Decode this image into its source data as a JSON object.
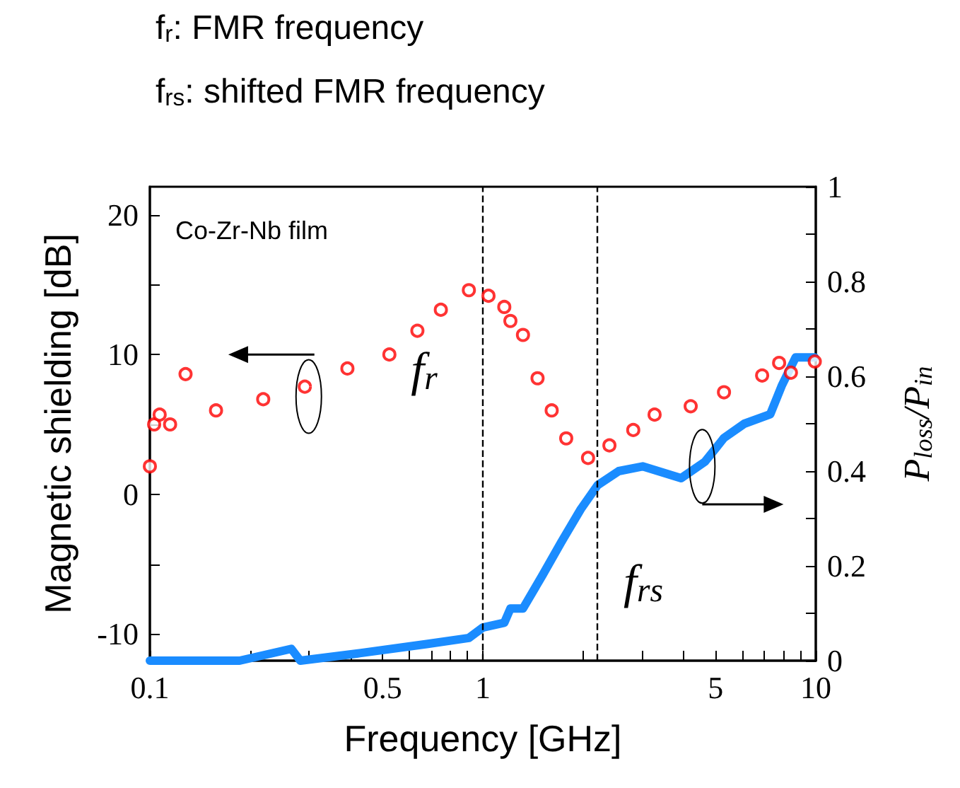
{
  "chart_data": {
    "type": "scatter",
    "xlabel": "Frequency [GHz]",
    "ylabel": "Magnetic shielding [dB]",
    "y2label": "P$_{loss}$/P$_{in}$",
    "log": "x",
    "xlim": [
      0.1,
      10
    ],
    "xticks": [
      0.1,
      {
        "value": 0.2,
        "label": null
      },
      {
        "value": 0.3,
        "label": null
      },
      {
        "value": 0.4,
        "label": null
      },
      0.5,
      {
        "value": 0.6,
        "label": null
      },
      {
        "value": 0.7,
        "label": null
      },
      {
        "value": 0.8,
        "label": null
      },
      {
        "value": 0.9,
        "label": null
      },
      1,
      {
        "value": 2,
        "label": null
      },
      {
        "value": 3,
        "label": null
      },
      {
        "value": 4,
        "label": null
      },
      5,
      {
        "value": 6,
        "label": null
      },
      {
        "value": 7,
        "label": null
      },
      {
        "value": 8,
        "label": null
      },
      {
        "value": 9,
        "label": null
      },
      10
    ],
    "ylim": [
      -11.9,
      22
    ],
    "yticks": [
      -10,
      {
        "value": -5,
        "label": null
      },
      0,
      {
        "value": 5,
        "label": null
      },
      10,
      {
        "value": 15,
        "label": null
      },
      20
    ],
    "y2lim": [
      0,
      1
    ],
    "y2ticks": [
      0,
      {
        "value": 0.1,
        "label": null
      },
      0.2,
      {
        "value": 0.3,
        "label": null
      },
      0.4,
      {
        "value": 0.5,
        "label": null
      },
      0.6,
      {
        "value": 0.7,
        "label": null
      },
      0.8,
      {
        "value": 0.9,
        "label": null
      },
      1
    ],
    "series": [
      {
        "marker": "circle",
        "color": "#ff0000",
        "x": [
          0.1,
          0.103,
          0.107,
          0.115,
          0.128,
          0.158,
          0.219,
          0.292,
          0.392,
          0.524,
          0.636,
          0.748,
          0.908,
          1.04,
          1.16,
          1.21,
          1.32,
          1.46,
          1.61,
          1.78,
          2.07,
          2.4,
          2.83,
          3.28,
          4.21,
          5.3,
          6.9,
          7.76,
          8.42,
          9.93
        ],
        "values": [
          2.0,
          5.0,
          5.7,
          5.0,
          8.6,
          6.0,
          6.8,
          7.7,
          9.0,
          10.0,
          11.7,
          13.2,
          14.6,
          14.2,
          13.4,
          12.4,
          11.4,
          8.3,
          6.0,
          4.0,
          2.6,
          3.5,
          4.6,
          5.7,
          6.3,
          7.3,
          8.5,
          9.4,
          8.7,
          9.5
        ]
      },
      {
        "type": "line",
        "marker": "none",
        "line_style": "solid",
        "axis": "y2",
        "color": "#1a8cff",
        "x": [
          0.1,
          0.186,
          0.266,
          0.283,
          0.418,
          0.678,
          0.908,
          1.0,
          1.16,
          1.21,
          1.32,
          1.51,
          1.72,
          1.97,
          2.21,
          2.56,
          3.02,
          3.94,
          4.65,
          5.3,
          6.1,
          7.3,
          7.9,
          8.7,
          9.93
        ],
        "values": [
          0.0,
          0.0,
          0.025,
          0.0,
          0.015,
          0.035,
          0.048,
          0.07,
          0.08,
          0.11,
          0.11,
          0.18,
          0.25,
          0.32,
          0.37,
          0.4,
          0.41,
          0.385,
          0.42,
          0.47,
          0.5,
          0.52,
          0.58,
          0.64,
          0.64
        ]
      }
    ],
    "ref_lines": [
      {
        "axis": "x",
        "value": 1.0,
        "color": "#000000",
        "line_style": "dashed"
      },
      {
        "axis": "x",
        "value": 2.2,
        "color": "#000000",
        "line_style": "dashed"
      }
    ],
    "annotations": [
      "f$_{r}$: FMR frequency",
      "f$_{rs}$: shifted FMR frequency",
      "Co-Zr-Nb film",
      "f$_{r}$",
      "f$_{rs}$"
    ]
  }
}
